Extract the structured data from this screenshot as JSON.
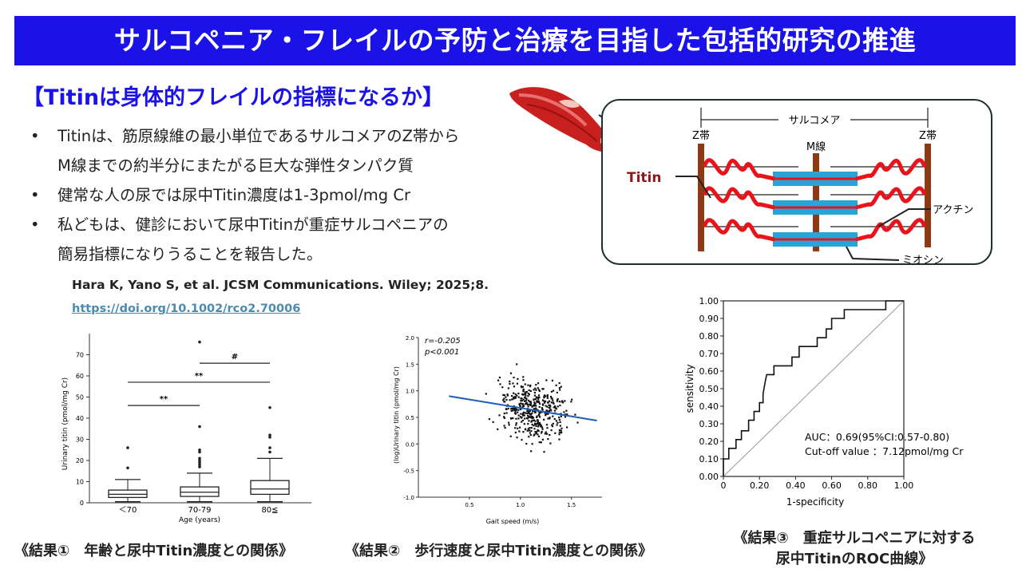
{
  "banner": {
    "title": "サルコペニア・フレイルの予防と治療を目指した包括的研究の推進",
    "color": "#1a12e6"
  },
  "section_title": "【Titinは身体的フレイルの指標になるか】",
  "bullets": [
    {
      "lines": [
        "Titinは、筋原線維の最小単位であるサルコメアのZ帯から",
        "M線までの約半分にまたがる巨大な弾性タンパク質"
      ]
    },
    {
      "lines": [
        "健常な人の尿では尿中Titin濃度は1-3pmol/mg Cr"
      ]
    },
    {
      "lines": [
        "私どもは、健診において尿中Titinが重症サルコペニアの",
        "簡易指標になりうることを報告した。"
      ]
    }
  ],
  "citation": "Hara K, Yano S, et al. JCSM Communications. Wiley; 2025;8.",
  "doi": "https://doi.org/10.1002/rco2.70006",
  "diagram": {
    "sarcomere_label": "サルコメア",
    "z_left": "Z帯",
    "z_right": "Z帯",
    "m_line": "M線",
    "titin": "Titin",
    "actin": "アクチン",
    "myosin": "ミオシン",
    "colors": {
      "titin": "#e8141c",
      "myosin": "#2aa3d8",
      "z_band": "#8b3a14",
      "titin_label": "#8b1a1a"
    }
  },
  "captions": {
    "c1": "《結果①　年齢と尿中Titin濃度との関係》",
    "c2": "《結果②　歩行速度と尿中Titin濃度との関係》",
    "c3_line1": "《結果③　重症サルコペニアに対する",
    "c3_line2": "尿中TitinのROC曲線》"
  },
  "chart_data": [
    {
      "type": "box",
      "xlabel": "Age (years)",
      "ylabel": "Urinary titin (pmol/mg Cr)",
      "ylim": [
        0,
        80
      ],
      "yticks": [
        0,
        10,
        20,
        30,
        40,
        50,
        60,
        70
      ],
      "categories": [
        "＜70",
        "70-79",
        "80≦"
      ],
      "boxes": [
        {
          "whisker_low": 0.5,
          "q1": 2.5,
          "median": 4,
          "q3": 6,
          "whisker_high": 11,
          "outliers": [
            16.5,
            26
          ]
        },
        {
          "whisker_low": 0.5,
          "q1": 3,
          "median": 5,
          "q3": 7.5,
          "whisker_high": 14,
          "outliers": [
            17,
            18,
            19,
            20,
            21,
            24,
            25,
            36,
            76
          ]
        },
        {
          "whisker_low": 0.5,
          "q1": 4,
          "median": 6.5,
          "q3": 10.5,
          "whisker_high": 21,
          "outliers": [
            24,
            26,
            31,
            32,
            45
          ]
        }
      ],
      "annotations": [
        {
          "text": "**",
          "from": 0,
          "to": 1,
          "y": 46
        },
        {
          "text": "**",
          "from": 0,
          "to": 2,
          "y": 57
        },
        {
          "text": "#",
          "from": 1,
          "to": 2,
          "y": 66
        }
      ]
    },
    {
      "type": "scatter",
      "xlabel": "Gait speed (m/s)",
      "ylabel": "(log)Urinary titin (pmol/mg Cr)",
      "xlim": [
        0,
        1.8
      ],
      "ylim": [
        -1.0,
        2.0
      ],
      "xticks": [
        0.5,
        1.0,
        1.5
      ],
      "yticks": [
        -1.0,
        -0.5,
        0,
        0.5,
        1.0,
        1.5,
        2.0
      ],
      "stat_r": "r=-0.205",
      "stat_p": "p<0.001",
      "regression": {
        "x": [
          0.3,
          1.75
        ],
        "y": [
          0.9,
          0.44
        ]
      },
      "n_points": 420
    },
    {
      "type": "line",
      "xlabel": "1-specificity",
      "ylabel": "sensitivity",
      "xlim": [
        0,
        1
      ],
      "ylim": [
        0,
        1
      ],
      "ticks": [
        "0.00",
        "0.10",
        "0.20",
        "0.30",
        "0.40",
        "0.50",
        "0.60",
        "0.70",
        "0.80",
        "0.90",
        "1.00"
      ],
      "xticks": [
        "0",
        "0.20",
        "0.40",
        "0.60",
        "0.80",
        "1.00"
      ],
      "auc_text": "AUC：0.69(95%CI:0.57-0.80)",
      "cutoff_text": "Cut-off value ：7.12pmol/mg Cr",
      "roc": [
        [
          0,
          0
        ],
        [
          0,
          0.1
        ],
        [
          0.03,
          0.1
        ],
        [
          0.03,
          0.16
        ],
        [
          0.07,
          0.16
        ],
        [
          0.07,
          0.21
        ],
        [
          0.1,
          0.21
        ],
        [
          0.1,
          0.26
        ],
        [
          0.14,
          0.26
        ],
        [
          0.14,
          0.32
        ],
        [
          0.17,
          0.32
        ],
        [
          0.17,
          0.37
        ],
        [
          0.2,
          0.37
        ],
        [
          0.2,
          0.42
        ],
        [
          0.22,
          0.42
        ],
        [
          0.22,
          0.47
        ],
        [
          0.23,
          0.53
        ],
        [
          0.24,
          0.58
        ],
        [
          0.28,
          0.58
        ],
        [
          0.28,
          0.63
        ],
        [
          0.38,
          0.63
        ],
        [
          0.38,
          0.68
        ],
        [
          0.42,
          0.68
        ],
        [
          0.42,
          0.74
        ],
        [
          0.52,
          0.74
        ],
        [
          0.52,
          0.79
        ],
        [
          0.57,
          0.79
        ],
        [
          0.57,
          0.84
        ],
        [
          0.6,
          0.84
        ],
        [
          0.6,
          0.9
        ],
        [
          0.67,
          0.9
        ],
        [
          0.67,
          0.95
        ],
        [
          0.9,
          0.95
        ],
        [
          0.9,
          1.0
        ],
        [
          1.0,
          1.0
        ]
      ]
    }
  ]
}
